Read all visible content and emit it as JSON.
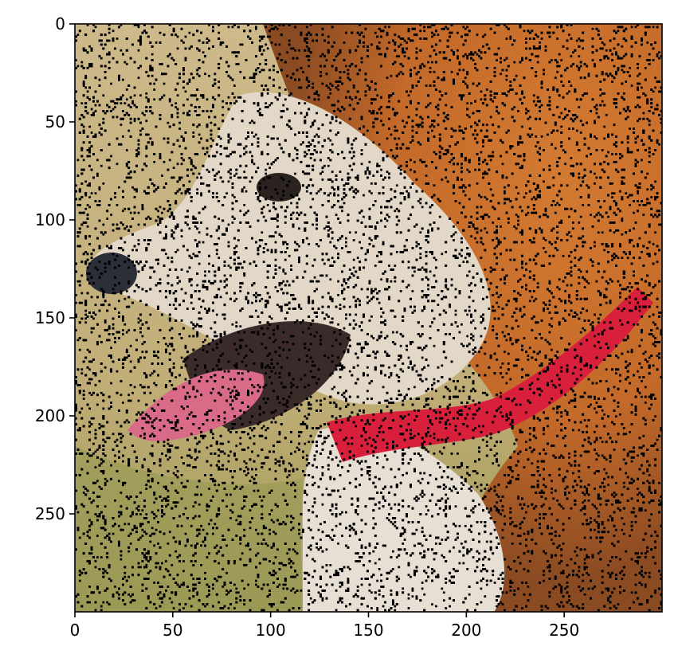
{
  "chart_data": {
    "type": "image",
    "title": "",
    "xlabel": "",
    "ylabel": "",
    "xlim": [
      0,
      300
    ],
    "ylim": [
      300,
      0
    ],
    "y_inverted": true,
    "grid": false,
    "image_content": "close-up photo of a dog's face (white and orange fur, tongue out, red collar) with random black pixel noise",
    "noise_color": "#000000",
    "x_ticks": [
      0,
      50,
      100,
      150,
      200,
      250
    ],
    "x_tick_labels": [
      "0",
      "50",
      "100",
      "150",
      "200",
      "250"
    ],
    "y_ticks": [
      0,
      50,
      100,
      150,
      200,
      250
    ],
    "y_tick_labels": [
      "0",
      "50",
      "100",
      "150",
      "200",
      "250"
    ],
    "colors": {
      "background_tan": "#cbb886",
      "fur_orange": "#c96d2a",
      "fur_white": "#e6ddd0",
      "collar_red": "#d81f3c",
      "tongue_pink": "#d96b88",
      "grass_green": "#9b9a54"
    }
  }
}
